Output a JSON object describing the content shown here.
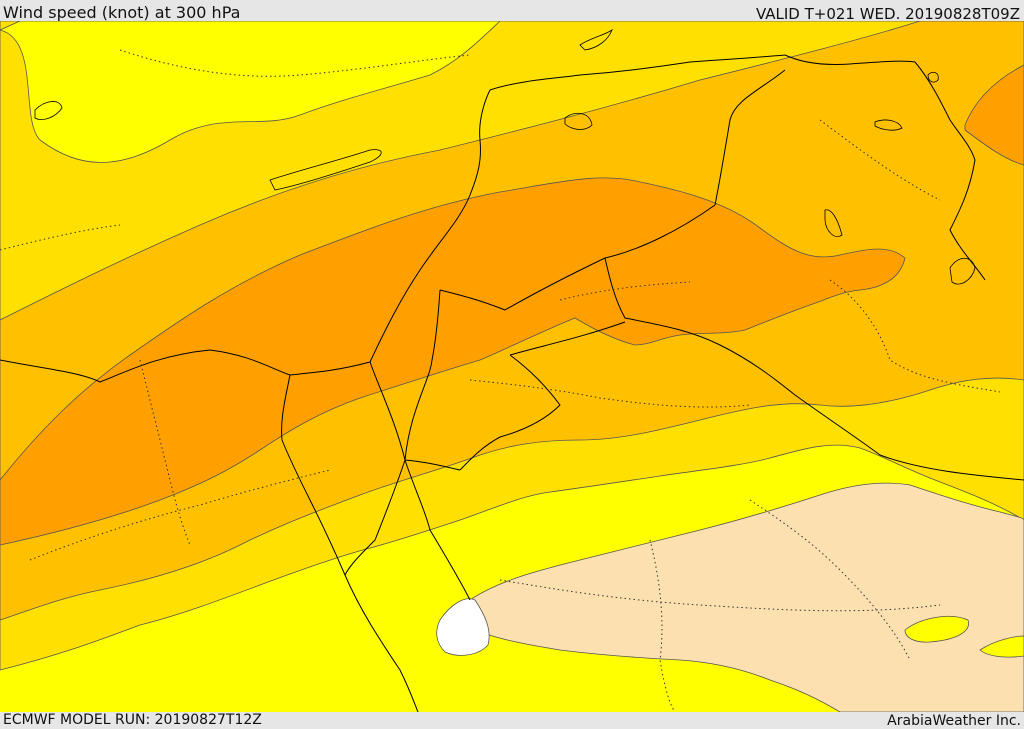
{
  "header": {
    "title": "Wind speed (knot) at 300 hPa",
    "valid": "VALID T+021 WED. 20190828T09Z"
  },
  "footer": {
    "model_run": "ECMWF MODEL RUN: 20190827T12Z",
    "credit": "ArabiaWeather Inc."
  },
  "map": {
    "colors": {
      "band_lowest": "#ffff00",
      "band_low": "#ffe000",
      "band_mid": "#ffc000",
      "band_high": "#ffa000",
      "band_very_low": "#fde0b0",
      "band_calm": "#ffffff",
      "contour": "#555555",
      "border": "#000000"
    }
  }
}
